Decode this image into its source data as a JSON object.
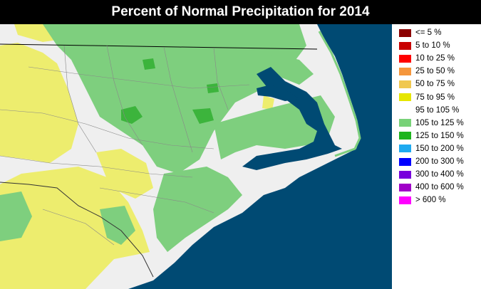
{
  "title": "Percent of Normal Precipitation for 2014",
  "colors": {
    "ocean": "#004a73",
    "background": "#f0f0f0",
    "title_bg": "#000000",
    "title_fg": "#ffffff"
  },
  "legend": [
    {
      "label": "<= 5 %",
      "color": "#8b0000"
    },
    {
      "label": "5 to 10 %",
      "color": "#c80000"
    },
    {
      "label": "10 to 25 %",
      "color": "#ff0000"
    },
    {
      "label": "25 to 50 %",
      "color": "#f5963c"
    },
    {
      "label": "50 to 75 %",
      "color": "#f0c850"
    },
    {
      "label": "75 to 95 %",
      "color": "#e6e600"
    },
    {
      "label": "95 to 105 %",
      "color": "#ffffff"
    },
    {
      "label": "105 to 125 %",
      "color": "#78d278"
    },
    {
      "label": "125 to 150 %",
      "color": "#1eb41e"
    },
    {
      "label": "150 to 200 %",
      "color": "#1eaaf0"
    },
    {
      "label": "200 to 300 %",
      "color": "#0000ff"
    },
    {
      "label": "300 to 400 %",
      "color": "#7800dc"
    },
    {
      "label": "400 to 600 %",
      "color": "#a000c8"
    },
    {
      "label": "> 600 %",
      "color": "#ff00ff"
    }
  ]
}
